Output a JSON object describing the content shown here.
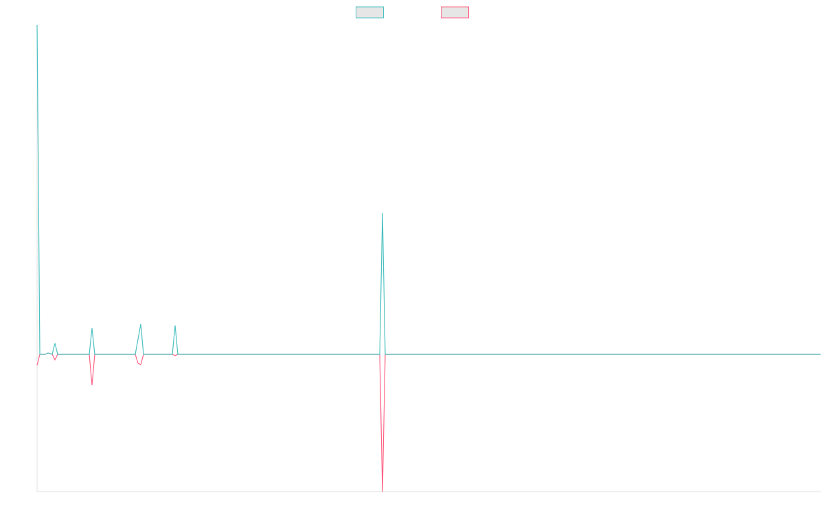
{
  "chart_data": {
    "type": "line",
    "x": [
      0,
      4,
      12,
      16,
      22,
      26,
      30,
      76,
      80,
      84,
      143,
      147,
      151,
      155,
      197,
      201,
      205,
      499,
      503,
      507,
      1141
    ],
    "xlim": [
      0,
      1141
    ],
    "ylim": [
      -200,
      480
    ],
    "series": [
      {
        "color": "#4bc0c0",
        "values": [
          480,
          0,
          0,
          2,
          0,
          16,
          0,
          0,
          38,
          0,
          0,
          22,
          44,
          0,
          0,
          42,
          0,
          0,
          206,
          0,
          0
        ]
      },
      {
        "color": "#ff6384",
        "values": [
          -16,
          0,
          0,
          2,
          0,
          -8,
          0,
          0,
          -45,
          0,
          0,
          -13,
          -15,
          0,
          0,
          -2,
          0,
          0,
          -200,
          0,
          0
        ]
      }
    ],
    "legend": "top"
  }
}
